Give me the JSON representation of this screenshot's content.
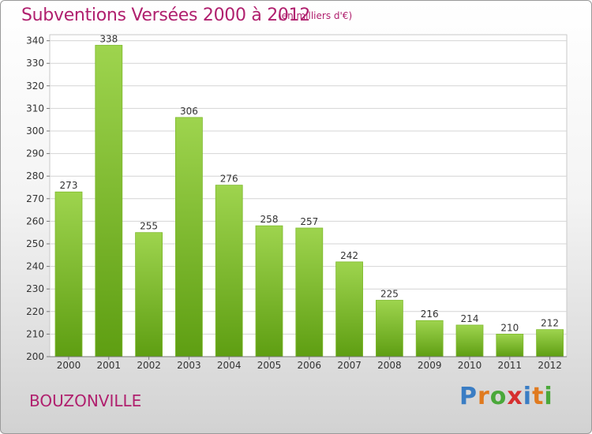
{
  "title": "Subventions Versées 2000 à 2012",
  "subtitle": "(en milliers d'€)",
  "city": "BOUZONVILLE",
  "logo": {
    "text": "Proxiti",
    "colors": [
      "#3a7dc4",
      "#e07a1f",
      "#4aa83a",
      "#d62f2f",
      "#3a7dc4",
      "#e07a1f",
      "#4aa83a"
    ]
  },
  "colors": {
    "bar_top": "#9ed44e",
    "bar_bottom": "#5e9e12",
    "title": "#b0206e"
  },
  "chart_data": {
    "type": "bar",
    "categories": [
      "2000",
      "2001",
      "2002",
      "2003",
      "2004",
      "2005",
      "2006",
      "2007",
      "2008",
      "2009",
      "2010",
      "2011",
      "2012"
    ],
    "values": [
      273,
      338,
      255,
      306,
      276,
      258,
      257,
      242,
      225,
      216,
      214,
      210,
      212
    ],
    "ylim": [
      200,
      345
    ],
    "yticks": [
      200,
      210,
      220,
      230,
      240,
      250,
      260,
      270,
      280,
      290,
      300,
      310,
      320,
      330,
      340
    ],
    "grid": true
  }
}
